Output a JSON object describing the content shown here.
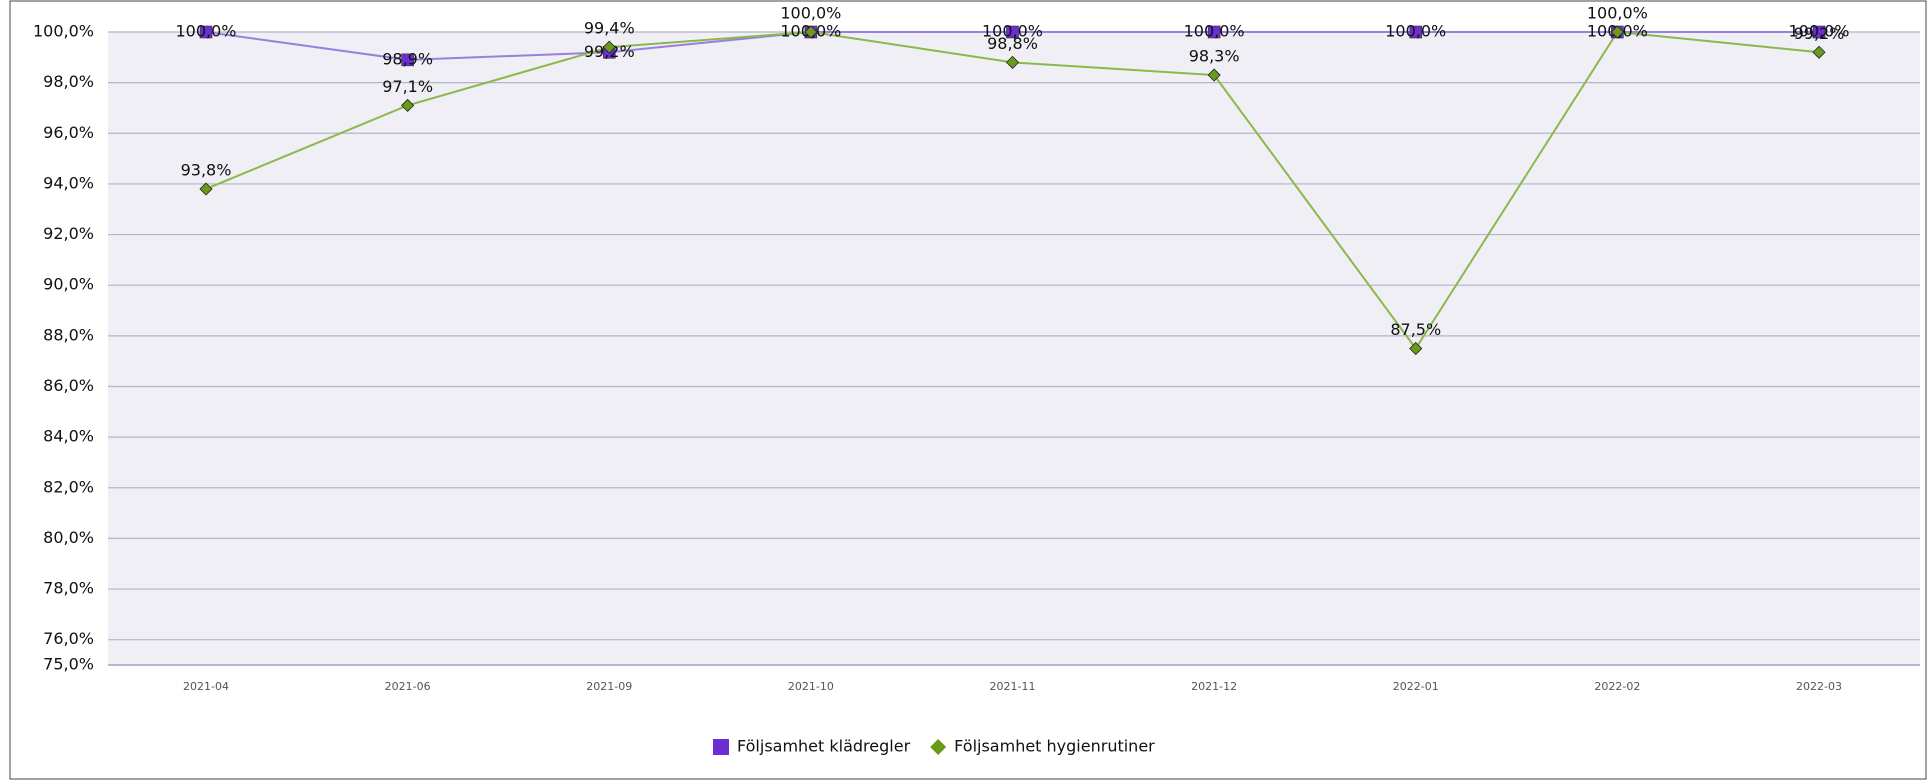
{
  "chart_data": {
    "type": "line",
    "categories": [
      "2021-04",
      "2021-06",
      "2021-09",
      "2021-10",
      "2021-11",
      "2021-12",
      "2022-01",
      "2022-02",
      "2022-03"
    ],
    "series": [
      {
        "name": "Följsamhet klädregler",
        "color": "#6a2fd1",
        "line_color": "#9b7fe0",
        "marker": "square",
        "values": [
          100,
          98.9,
          99.2,
          100,
          100,
          100,
          100,
          100,
          100
        ],
        "value_labels": [
          "100,0%",
          "98,9%",
          "99,2%",
          "100,0%",
          "100,0%",
          "100,0%",
          "100,0%",
          "100,0%",
          "100,0%"
        ]
      },
      {
        "name": "Följsamhet hygienrutiner",
        "color": "#6a9a1a",
        "line_color": "#8cb84a",
        "marker": "diamond",
        "values": [
          93.8,
          97.1,
          99.4,
          100,
          98.8,
          98.3,
          87.5,
          100,
          99.2
        ],
        "value_labels": [
          "93,8%",
          "97,1%",
          "99,4%",
          "100,0%",
          "98,8%",
          "98,3%",
          "87,5%",
          "100,0%",
          "99,2%"
        ]
      }
    ],
    "ylim": [
      75,
      100
    ],
    "yticks": [
      {
        "value": 75,
        "label": "75,0%"
      },
      {
        "value": 76,
        "label": "76,0%"
      },
      {
        "value": 78,
        "label": "78,0%"
      },
      {
        "value": 80,
        "label": "80,0%"
      },
      {
        "value": 82,
        "label": "82,0%"
      },
      {
        "value": 84,
        "label": "84,0%"
      },
      {
        "value": 86,
        "label": "86,0%"
      },
      {
        "value": 88,
        "label": "88,0%"
      },
      {
        "value": 90,
        "label": "90,0%"
      },
      {
        "value": 92,
        "label": "92,0%"
      },
      {
        "value": 94,
        "label": "94,0%"
      },
      {
        "value": 96,
        "label": "96,0%"
      },
      {
        "value": 98,
        "label": "98,0%"
      },
      {
        "value": 100,
        "label": "100,0%"
      }
    ],
    "grid": true,
    "legend": "bottom"
  }
}
